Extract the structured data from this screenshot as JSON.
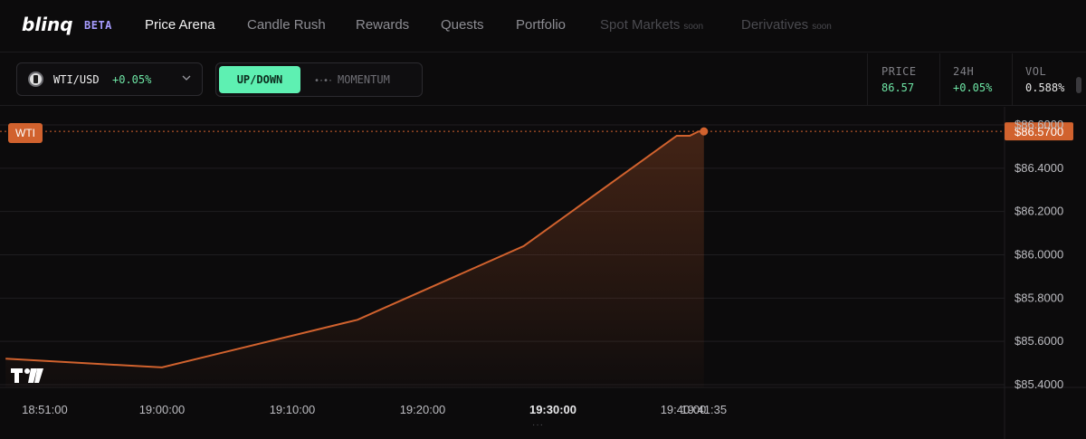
{
  "nav": {
    "logo": "blinq",
    "beta": "BETA",
    "items": [
      {
        "label": "Price Arena",
        "state": "active"
      },
      {
        "label": "Candle Rush",
        "state": "normal"
      },
      {
        "label": "Rewards",
        "state": "normal"
      },
      {
        "label": "Quests",
        "state": "normal"
      },
      {
        "label": "Portfolio",
        "state": "normal"
      },
      {
        "label": "Spot Markets",
        "badge": "soon",
        "state": "disabled"
      },
      {
        "label": "Derivatives",
        "badge": "soon",
        "state": "disabled"
      }
    ]
  },
  "toolbar": {
    "pair": {
      "name": "WTI/USD",
      "change": "+0.05%",
      "icon": "oil-barrel-icon"
    },
    "modes": {
      "updown": "UP/DOWN",
      "momentum": "MOMENTUM",
      "momentum_icon": "•·•·"
    },
    "stats": [
      {
        "label": "PRICE",
        "value": "86.57",
        "color": "#6ee7a6"
      },
      {
        "label": "24H",
        "value": "+0.05%",
        "color": "#6ee7a6"
      },
      {
        "label": "VOL",
        "value": "0.588%",
        "color": "#e6e6e6"
      }
    ]
  },
  "chart": {
    "symbol_tag": "WTI",
    "bottom_handle": "···",
    "colors": {
      "line": "#d1622e",
      "tag": "#d1622e",
      "grid": "#1f1e21"
    }
  },
  "chart_data": {
    "type": "area",
    "title": "",
    "xlabel": "",
    "ylabel": "",
    "x": [
      "18:48:00",
      "19:00:00",
      "19:15:00",
      "19:27:45",
      "19:39:30",
      "19:40:30",
      "19:41:10",
      "19:41:35"
    ],
    "series": [
      {
        "values": [
          85.52,
          85.48,
          85.7,
          86.04,
          86.55,
          86.55,
          86.57,
          86.57
        ]
      }
    ],
    "current_price": 86.57,
    "current_price_label": "$86.5700",
    "x_ticks": [
      "18:51:00",
      "19:00:00",
      "19:10:00",
      "19:20:00",
      "19:30:00",
      "19:40:00",
      "19:41:35"
    ],
    "y_ticks": [
      "$85.4000",
      "$85.6000",
      "$85.8000",
      "$86.0000",
      "$86.2000",
      "$86.4000",
      "$86.6000"
    ],
    "y_tick_values": [
      85.4,
      85.6,
      85.8,
      86.0,
      86.2,
      86.4,
      86.6
    ],
    "ylim": [
      85.4,
      86.6
    ],
    "grid": true
  }
}
